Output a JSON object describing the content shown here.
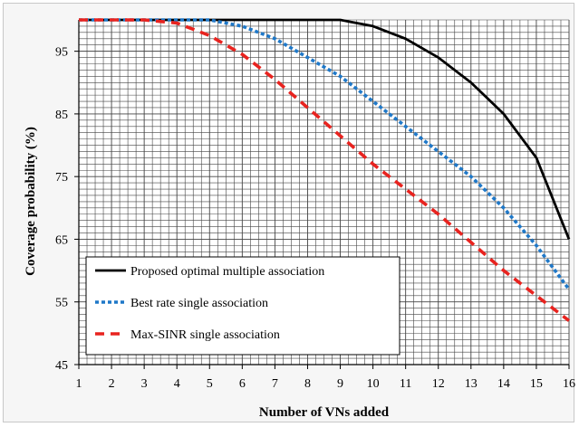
{
  "chart_data": {
    "type": "line",
    "xlabel": "Number of VNs added",
    "ylabel": "Coverage probability (%)",
    "x": [
      1,
      2,
      3,
      4,
      5,
      6,
      7,
      8,
      9,
      10,
      11,
      12,
      13,
      14,
      15,
      16
    ],
    "xlim": [
      1,
      16
    ],
    "ylim": [
      45,
      100
    ],
    "yticks": [
      45,
      55,
      65,
      75,
      85,
      95
    ],
    "grid": true,
    "legend_position": "bottom-left",
    "series": [
      {
        "name": "Proposed optimal multiple association",
        "color": "#000000",
        "dash": "solid",
        "values": [
          100,
          100,
          100,
          100,
          100,
          100,
          100,
          100,
          100,
          99,
          97,
          94,
          90,
          85,
          78,
          65
        ]
      },
      {
        "name": "Best rate single association",
        "color": "#1f78c8",
        "dash": "dotted",
        "values": [
          100,
          100,
          100,
          100,
          100,
          99,
          97,
          94,
          91,
          87,
          83,
          79,
          75,
          70,
          64,
          57
        ]
      },
      {
        "name": "Max-SINR single association",
        "color": "#e8231f",
        "dash": "dashed",
        "values": [
          100,
          100,
          100,
          99.5,
          97.5,
          94.5,
          90.5,
          86,
          81.5,
          77,
          73,
          69,
          64.5,
          60,
          56,
          52
        ]
      }
    ]
  }
}
